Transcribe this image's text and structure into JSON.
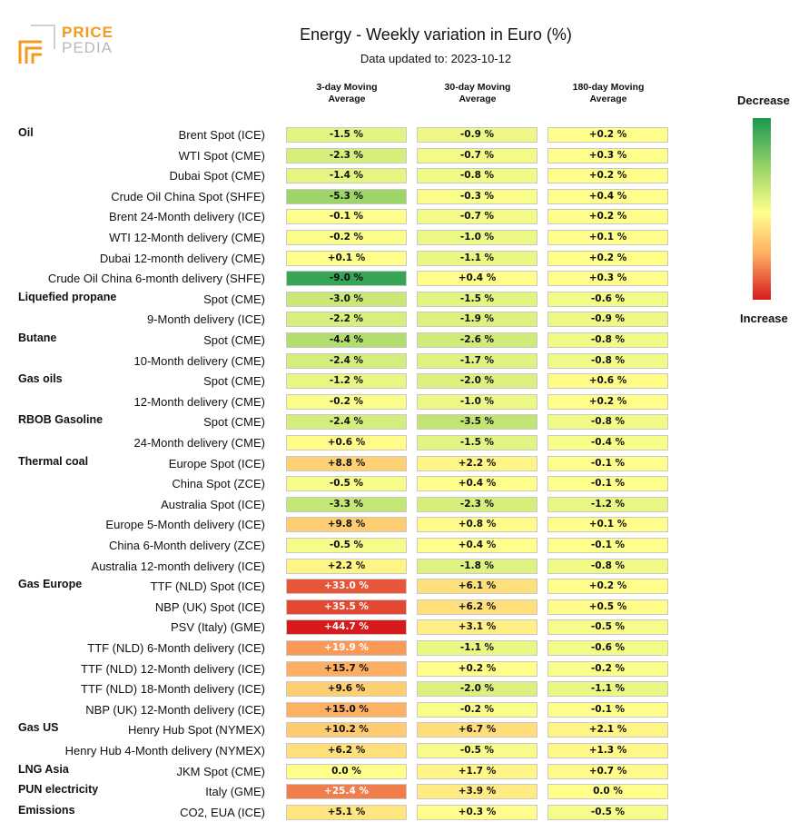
{
  "brand": {
    "line1": "PRICE",
    "line2": "PEDIA",
    "colors": {
      "orange": "#f29b1d",
      "gray": "#b9b9b9"
    }
  },
  "header": {
    "title": "Energy - Weekly variation in Euro (%)",
    "subtitle": "Data updated to: 2023-10-12"
  },
  "legend": {
    "top": "Decrease",
    "bottom": "Increase"
  },
  "chart_data": {
    "type": "table",
    "title": "Energy - Weekly variation in Euro (%)",
    "columns": [
      {
        "line1": "3-day Moving",
        "line2": "Average"
      },
      {
        "line1": "30-day Moving",
        "line2": "Average"
      },
      {
        "line1": "180-day Moving",
        "line2": "Average"
      }
    ],
    "unit": "%",
    "color_scale": {
      "min": -10,
      "mid": 0,
      "max": 40,
      "low_color": "#1a9850",
      "mid_color": "#ffff8c",
      "high_color": "#d7191c"
    },
    "rows": [
      {
        "group": "Oil",
        "label": "Brent Spot (ICE)",
        "values": [
          -1.5,
          -0.9,
          0.2
        ]
      },
      {
        "group": "",
        "label": "WTI Spot (CME)",
        "values": [
          -2.3,
          -0.7,
          0.3
        ]
      },
      {
        "group": "",
        "label": "Dubai Spot (CME)",
        "values": [
          -1.4,
          -0.8,
          0.2
        ]
      },
      {
        "group": "",
        "label": "Crude Oil China Spot (SHFE)",
        "values": [
          -5.3,
          -0.3,
          0.4
        ]
      },
      {
        "group": "",
        "label": "Brent 24-Month delivery (ICE)",
        "values": [
          -0.1,
          -0.7,
          0.2
        ]
      },
      {
        "group": "",
        "label": "WTI 12-Month delivery (CME)",
        "values": [
          -0.2,
          -1.0,
          0.1
        ]
      },
      {
        "group": "",
        "label": "Dubai 12-month delivery (CME)",
        "values": [
          0.1,
          -1.1,
          0.2
        ]
      },
      {
        "group": "",
        "label": "Crude Oil China 6-month delivery (SHFE)",
        "values": [
          -9.0,
          0.4,
          0.3
        ]
      },
      {
        "group": "Liquefied propane",
        "label": "Spot (CME)",
        "values": [
          -3.0,
          -1.5,
          -0.6
        ]
      },
      {
        "group": "",
        "label": "9-Month delivery (ICE)",
        "values": [
          -2.2,
          -1.9,
          -0.9
        ]
      },
      {
        "group": "Butane",
        "label": "Spot (CME)",
        "values": [
          -4.4,
          -2.6,
          -0.8
        ]
      },
      {
        "group": "",
        "label": "10-Month delivery (CME)",
        "values": [
          -2.4,
          -1.7,
          -0.8
        ]
      },
      {
        "group": "Gas oils",
        "label": "Spot (CME)",
        "values": [
          -1.2,
          -2.0,
          0.6
        ]
      },
      {
        "group": "",
        "label": "12-Month delivery (CME)",
        "values": [
          -0.2,
          -1.0,
          0.2
        ]
      },
      {
        "group": "RBOB Gasoline",
        "label": "Spot (CME)",
        "values": [
          -2.4,
          -3.5,
          -0.8
        ]
      },
      {
        "group": "",
        "label": "24-Month delivery (CME)",
        "values": [
          0.6,
          -1.5,
          -0.4
        ]
      },
      {
        "group": "Thermal coal",
        "label": "Europe Spot (ICE)",
        "values": [
          8.8,
          2.2,
          -0.1
        ]
      },
      {
        "group": "",
        "label": "China Spot (ZCE)",
        "values": [
          -0.5,
          0.4,
          -0.1
        ]
      },
      {
        "group": "",
        "label": "Australia Spot (ICE)",
        "values": [
          -3.3,
          -2.3,
          -1.2
        ]
      },
      {
        "group": "",
        "label": "Europe 5-Month delivery (ICE)",
        "values": [
          9.8,
          0.8,
          0.1
        ]
      },
      {
        "group": "",
        "label": "China 6-Month delivery (ZCE)",
        "values": [
          -0.5,
          0.4,
          -0.1
        ]
      },
      {
        "group": "",
        "label": "Australia 12-month delivery (ICE)",
        "values": [
          2.2,
          -1.8,
          -0.8
        ]
      },
      {
        "group": "Gas Europe",
        "label": "TTF (NLD) Spot (ICE)",
        "values": [
          33.0,
          6.1,
          0.2
        ]
      },
      {
        "group": "",
        "label": "NBP (UK) Spot (ICE)",
        "values": [
          35.5,
          6.2,
          0.5
        ]
      },
      {
        "group": "",
        "label": "PSV (Italy) (GME)",
        "values": [
          44.7,
          3.1,
          -0.5
        ]
      },
      {
        "group": "",
        "label": "TTF (NLD) 6-Month delivery (ICE)",
        "values": [
          19.9,
          -1.1,
          -0.6
        ]
      },
      {
        "group": "",
        "label": "TTF (NLD) 12-Month delivery (ICE)",
        "values": [
          15.7,
          0.2,
          -0.2
        ]
      },
      {
        "group": "",
        "label": "TTF (NLD) 18-Month delivery (ICE)",
        "values": [
          9.6,
          -2.0,
          -1.1
        ]
      },
      {
        "group": "",
        "label": "NBP (UK) 12-Month delivery (ICE)",
        "values": [
          15.0,
          -0.2,
          -0.1
        ]
      },
      {
        "group": "Gas US",
        "label": "Henry Hub Spot (NYMEX)",
        "values": [
          10.2,
          6.7,
          2.1
        ]
      },
      {
        "group": "",
        "label": "Henry Hub 4-Month delivery (NYMEX)",
        "values": [
          6.2,
          -0.5,
          1.3
        ]
      },
      {
        "group": "LNG Asia",
        "label": "JKM Spot (CME)",
        "values": [
          0.0,
          1.7,
          0.7
        ]
      },
      {
        "group": "PUN electricity",
        "label": "Italy (GME)",
        "values": [
          25.4,
          3.9,
          0.0
        ]
      },
      {
        "group": "Emissions",
        "label": "CO2, EUA (ICE)",
        "values": [
          5.1,
          0.3,
          -0.5
        ]
      }
    ]
  }
}
